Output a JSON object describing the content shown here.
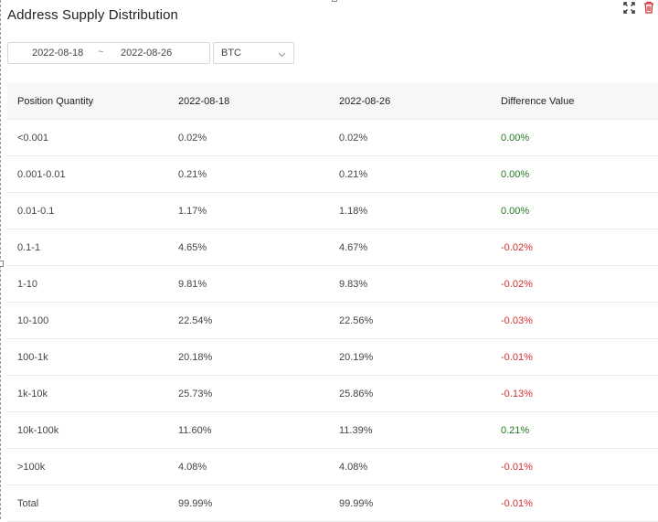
{
  "title": "Address Supply Distribution",
  "filters": {
    "date_start": "2022-08-18",
    "date_separator": "~",
    "date_end": "2022-08-26",
    "asset": "BTC"
  },
  "icons": {
    "expand": "expand-icon",
    "delete": "trash-icon",
    "dropdown": "chevron-down-icon"
  },
  "colors": {
    "positive": "#1f7a1f",
    "negative": "#d32f2f",
    "delete_icon": "#d32f2f"
  },
  "table": {
    "headers": [
      "Position Quantity",
      "2022-08-18",
      "2022-08-26",
      "Difference Value"
    ],
    "rows": [
      {
        "range": "<0.001",
        "start": "0.02%",
        "end": "0.02%",
        "diff": "0.00%",
        "sign": "pos"
      },
      {
        "range": "0.001-0.01",
        "start": "0.21%",
        "end": "0.21%",
        "diff": "0.00%",
        "sign": "pos"
      },
      {
        "range": "0.01-0.1",
        "start": "1.17%",
        "end": "1.18%",
        "diff": "0.00%",
        "sign": "pos"
      },
      {
        "range": "0.1-1",
        "start": "4.65%",
        "end": "4.67%",
        "diff": "-0.02%",
        "sign": "neg"
      },
      {
        "range": "1-10",
        "start": "9.81%",
        "end": "9.83%",
        "diff": "-0.02%",
        "sign": "neg"
      },
      {
        "range": "10-100",
        "start": "22.54%",
        "end": "22.56%",
        "diff": "-0.03%",
        "sign": "neg"
      },
      {
        "range": "100-1k",
        "start": "20.18%",
        "end": "20.19%",
        "diff": "-0.01%",
        "sign": "neg"
      },
      {
        "range": "1k-10k",
        "start": "25.73%",
        "end": "25.86%",
        "diff": "-0.13%",
        "sign": "neg"
      },
      {
        "range": "10k-100k",
        "start": "11.60%",
        "end": "11.39%",
        "diff": "0.21%",
        "sign": "pos"
      },
      {
        "range": ">100k",
        "start": "4.08%",
        "end": "4.08%",
        "diff": "-0.01%",
        "sign": "neg"
      },
      {
        "range": "Total",
        "start": "99.99%",
        "end": "99.99%",
        "diff": "-0.01%",
        "sign": "neg"
      }
    ]
  }
}
